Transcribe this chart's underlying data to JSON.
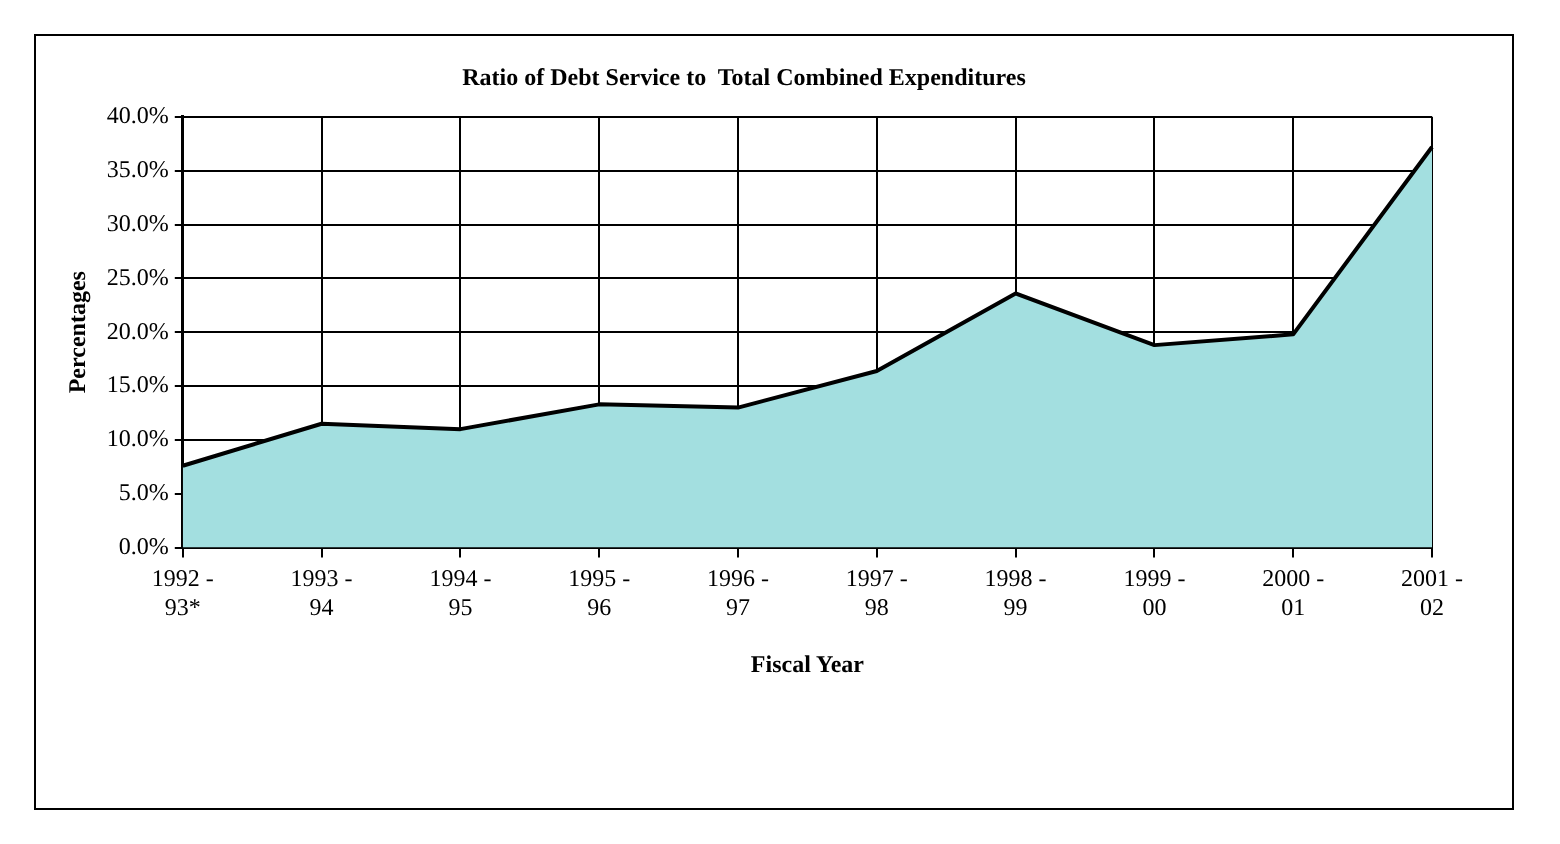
{
  "chart_data": {
    "type": "area",
    "title": "Ratio of Debt Service to  Total Combined Expenditures",
    "xlabel": "Fiscal Year",
    "ylabel": "Percentages",
    "categories": [
      "1992 - 93*",
      "1993 - 94",
      "1994 - 95",
      "1995 - 96",
      "1996 - 97",
      "1997 - 98",
      "1998 - 99",
      "1999 - 00",
      "2000 - 01",
      "2001 - 02"
    ],
    "series": [
      {
        "color": "#a3dfe0",
        "values": [
          7.6,
          11.5,
          11.0,
          13.3,
          13.0,
          16.4,
          23.6,
          18.8,
          19.8,
          37.2
        ]
      }
    ],
    "ylim": [
      0,
      40
    ],
    "yticks": [
      {
        "value": 0,
        "label": "0.0%"
      },
      {
        "value": 5,
        "label": "5.0%"
      },
      {
        "value": 10,
        "label": "10.0%"
      },
      {
        "value": 15,
        "label": "15.0%"
      },
      {
        "value": 20,
        "label": "20.0%"
      },
      {
        "value": 25,
        "label": "25.0%"
      },
      {
        "value": 30,
        "label": "30.0%"
      },
      {
        "value": 35,
        "label": "35.0%"
      },
      {
        "value": 40,
        "label": "40.0%"
      }
    ],
    "grid": true,
    "legend": false
  }
}
